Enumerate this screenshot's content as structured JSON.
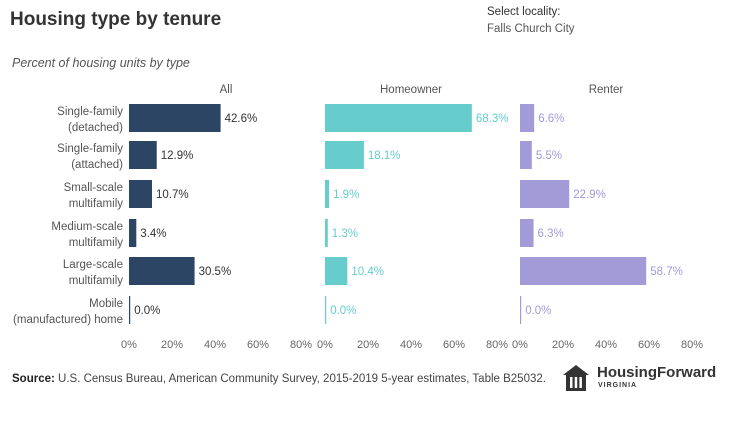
{
  "title": "Housing type by tenure",
  "subtitle": "Percent of housing units by type",
  "locality": {
    "label": "Select locality:",
    "value": "Falls Church City"
  },
  "source": {
    "label": "Source:",
    "text": " U.S. Census Bureau, American Community Survey, 2015-2019 5-year estimates, Table B25032."
  },
  "logo": {
    "name": "HousingForward",
    "sub": "VIRGINIA",
    "icon": "house-icon"
  },
  "chart_data": {
    "type": "bar",
    "orientation": "horizontal",
    "categories": [
      [
        "Single-family",
        "(detached)"
      ],
      [
        "Single-family",
        "(attached)"
      ],
      [
        "Small-scale",
        "multifamily"
      ],
      [
        "Medium-scale",
        "multifamily"
      ],
      [
        "Large-scale",
        "multifamily"
      ],
      [
        "Mobile",
        "(manufactured) home"
      ]
    ],
    "panels": [
      {
        "name": "All",
        "color": "#2d4564",
        "label_color": "#333333",
        "values": [
          42.6,
          12.9,
          10.7,
          3.4,
          30.5,
          0.0
        ]
      },
      {
        "name": "Homeowner",
        "color": "#66cdcc",
        "label_color": "#66cdcc",
        "values": [
          68.3,
          18.1,
          1.9,
          1.3,
          10.4,
          0.0
        ]
      },
      {
        "name": "Renter",
        "color": "#a29bd8",
        "label_color": "#a29bd8",
        "values": [
          6.6,
          5.5,
          22.9,
          6.3,
          58.7,
          0.0
        ]
      }
    ],
    "xticks": [
      "0%",
      "20%",
      "40%",
      "60%",
      "80%"
    ],
    "xlim": [
      0,
      80
    ],
    "grid": false
  }
}
